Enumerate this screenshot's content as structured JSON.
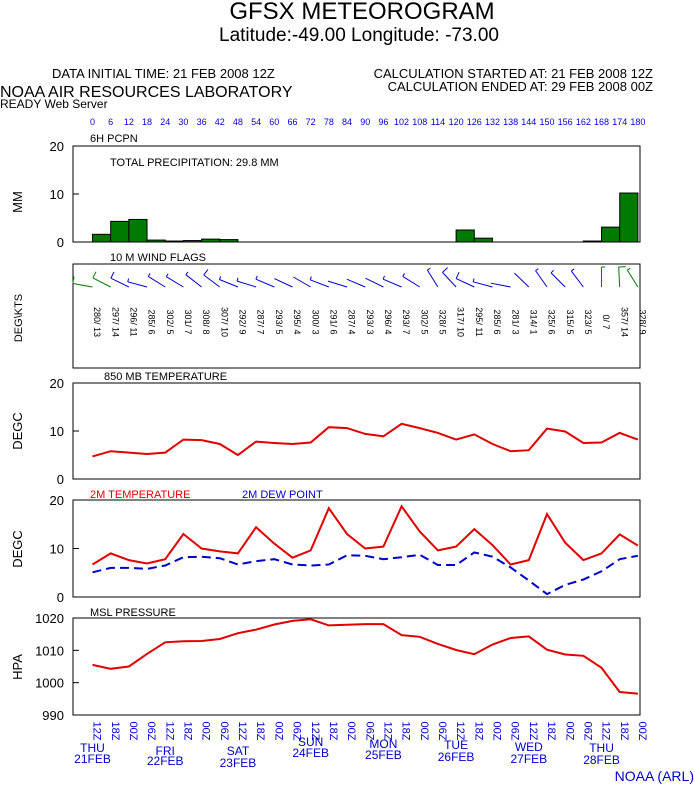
{
  "header": {
    "title": "GFSX METEOROGRAM",
    "subtitle": "Latitude:-49.00 Longitude: -73.00",
    "initial_time": "DATA INITIAL TIME: 21 FEB 2008 12Z",
    "calc_started": "CALCULATION STARTED AT: 21 FEB 2008 12Z",
    "calc_ended": "CALCULATION ENDED AT: 29 FEB 2008 00Z",
    "lab": "NOAA AIR RESOURCES LABORATORY",
    "server": "READY Web Server",
    "footer": "NOAA (ARL)"
  },
  "colors": {
    "precip": "#007a00",
    "temp": "#e00000",
    "dewpoint": "#0000cc",
    "axis": "#000000",
    "hours": "#0000cc",
    "dates": "#0000cc"
  },
  "chart_data": [
    {
      "type": "bar",
      "title": "6H PCPN",
      "annotation": "TOTAL PRECIPITATION:  29.8 MM",
      "ylabel": "MM",
      "ylim": [
        0,
        20
      ],
      "yticks": [
        "0",
        "10",
        "20"
      ],
      "x": [
        6,
        12,
        18,
        24,
        30,
        36,
        42,
        48,
        54,
        60,
        66,
        72,
        78,
        84,
        90,
        96,
        102,
        108,
        114,
        120,
        126,
        132,
        138,
        144,
        150,
        156,
        162,
        168,
        174,
        180
      ],
      "values": [
        1.6,
        4.3,
        4.7,
        0.4,
        0.2,
        0.3,
        0.6,
        0.5,
        0,
        0,
        0,
        0,
        0,
        0,
        0,
        0,
        0,
        0,
        0,
        0,
        2.5,
        0.8,
        0,
        0,
        0,
        0,
        0,
        0.2,
        3.1,
        10.2
      ]
    },
    {
      "type": "wind",
      "title": "10 M  WIND FLAGS",
      "ylabel": "DEG\\KTS",
      "x": [
        0,
        6,
        12,
        18,
        24,
        30,
        36,
        42,
        48,
        54,
        60,
        66,
        72,
        78,
        84,
        90,
        96,
        102,
        108,
        114,
        120,
        126,
        132,
        138,
        144,
        150,
        156,
        162,
        168,
        174,
        180
      ],
      "labels": [
        "280/ 13",
        "297/ 14",
        "296/ 11",
        "285/ 6",
        "302/ 5",
        "301/ 7",
        "308/ 8",
        "307/ 10",
        "292/ 9",
        "287/ 7",
        "293/ 5",
        "295/ 4",
        "300/ 3",
        "291/ 6",
        "287/ 4",
        "293/ 3",
        "296/ 4",
        "293/ 7",
        "302/ 5",
        "328/ 5",
        "317/ 10",
        "295/ 11",
        "285/ 6",
        "281/ 3",
        "314/ 1",
        "325/ 6",
        "315/ 5",
        "323/ 5",
        "0/ 7",
        "357/ 14",
        "328/ 9"
      ]
    },
    {
      "type": "line",
      "title": "850 MB  TEMPERATURE",
      "ylabel": "DEGC",
      "ylim": [
        0,
        20
      ],
      "yticks": [
        "0",
        "10",
        "20"
      ],
      "x": [
        0,
        6,
        12,
        18,
        24,
        30,
        36,
        42,
        48,
        54,
        60,
        66,
        72,
        78,
        84,
        90,
        96,
        102,
        108,
        114,
        120,
        126,
        132,
        138,
        144,
        150,
        156,
        162,
        168,
        174,
        180
      ],
      "series": [
        {
          "values": [
            4.7,
            5.8,
            5.5,
            5.2,
            5.5,
            8.2,
            8.1,
            7.3,
            5.0,
            7.8,
            7.5,
            7.3,
            7.6,
            10.8,
            10.6,
            9.4,
            8.9,
            11.5,
            10.6,
            9.6,
            8.2,
            9.3,
            7.3,
            5.8,
            6.0,
            10.5,
            9.9,
            7.5,
            7.6,
            9.6,
            8.2
          ],
          "style": "solid"
        }
      ]
    },
    {
      "type": "line",
      "ylabel": "DEGC",
      "ylim": [
        0,
        20
      ],
      "yticks": [
        "0",
        "10",
        "20"
      ],
      "x": [
        0,
        6,
        12,
        18,
        24,
        30,
        36,
        42,
        48,
        54,
        60,
        66,
        72,
        78,
        84,
        90,
        96,
        102,
        108,
        114,
        120,
        126,
        132,
        138,
        144,
        150,
        156,
        162,
        168,
        174,
        180
      ],
      "series": [
        {
          "name": "2M TEMPERATURE",
          "style": "solid",
          "values": [
            6.7,
            9.0,
            7.6,
            6.9,
            7.8,
            13.0,
            10.0,
            9.4,
            9.0,
            14.4,
            11.0,
            8.1,
            9.6,
            18.3,
            13.0,
            10.0,
            10.4,
            18.7,
            13.5,
            9.6,
            10.4,
            14.0,
            10.7,
            6.7,
            7.6,
            17.1,
            11.2,
            7.6,
            9.0,
            12.9,
            10.6
          ]
        },
        {
          "name": "2M   DEW POINT",
          "style": "dashed",
          "values": [
            5.1,
            6.0,
            6.0,
            5.8,
            6.5,
            8.2,
            8.3,
            8.0,
            6.7,
            7.4,
            7.8,
            6.7,
            6.5,
            6.7,
            8.6,
            8.5,
            7.8,
            8.2,
            8.7,
            6.6,
            6.6,
            9.2,
            8.3,
            6.1,
            3.4,
            0.6,
            2.5,
            3.6,
            5.3,
            7.8,
            8.5
          ]
        }
      ]
    },
    {
      "type": "line",
      "title": "MSL PRESSURE",
      "ylabel": "HPA",
      "ylim": [
        990,
        1020
      ],
      "yticks": [
        "990",
        "1000",
        "1010",
        "1020"
      ],
      "x": [
        0,
        6,
        12,
        18,
        24,
        30,
        36,
        42,
        48,
        54,
        60,
        66,
        72,
        78,
        84,
        90,
        96,
        102,
        108,
        114,
        120,
        126,
        132,
        138,
        144,
        150,
        156,
        162,
        168,
        174,
        180
      ],
      "series": [
        {
          "values": [
            1005.5,
            1004.3,
            1005.0,
            1008.9,
            1012.5,
            1012.8,
            1012.9,
            1013.5,
            1015.3,
            1016.4,
            1018.0,
            1019.1,
            1019.6,
            1017.7,
            1017.9,
            1018.1,
            1018.1,
            1014.7,
            1014.2,
            1012.0,
            1010.1,
            1008.8,
            1011.8,
            1013.8,
            1014.3,
            1010.2,
            1008.7,
            1008.3,
            1004.6,
            997.1,
            996.6
          ]
        }
      ]
    }
  ],
  "time_axis": {
    "forecast_hours": [
      "0",
      "6",
      "12",
      "18",
      "24",
      "30",
      "36",
      "42",
      "48",
      "54",
      "60",
      "66",
      "72",
      "78",
      "84",
      "90",
      "96",
      "102",
      "108",
      "114",
      "120",
      "126",
      "132",
      "138",
      "144",
      "150",
      "156",
      "162",
      "168",
      "174",
      "180"
    ],
    "utc_labels": [
      "12Z",
      "18Z",
      "00Z",
      "06Z",
      "12Z",
      "18Z",
      "00Z",
      "06Z",
      "12Z",
      "18Z",
      "00Z",
      "06Z",
      "12Z",
      "18Z",
      "00Z",
      "06Z",
      "12Z",
      "18Z",
      "00Z",
      "06Z",
      "12Z",
      "18Z",
      "00Z",
      "06Z",
      "12Z",
      "18Z",
      "00Z",
      "06Z",
      "12Z",
      "18Z",
      "00Z"
    ],
    "days": [
      {
        "day": "THU",
        "date": "21FEB",
        "hour": 0
      },
      {
        "day": "FRI",
        "date": "22FEB",
        "hour": 24
      },
      {
        "day": "SAT",
        "date": "23FEB",
        "hour": 48
      },
      {
        "day": "SUN",
        "date": "24FEB",
        "hour": 72
      },
      {
        "day": "MON",
        "date": "25FEB",
        "hour": 96
      },
      {
        "day": "TUE",
        "date": "26FEB",
        "hour": 120
      },
      {
        "day": "WED",
        "date": "27FEB",
        "hour": 144
      },
      {
        "day": "THU",
        "date": "28FEB",
        "hour": 168
      }
    ]
  }
}
